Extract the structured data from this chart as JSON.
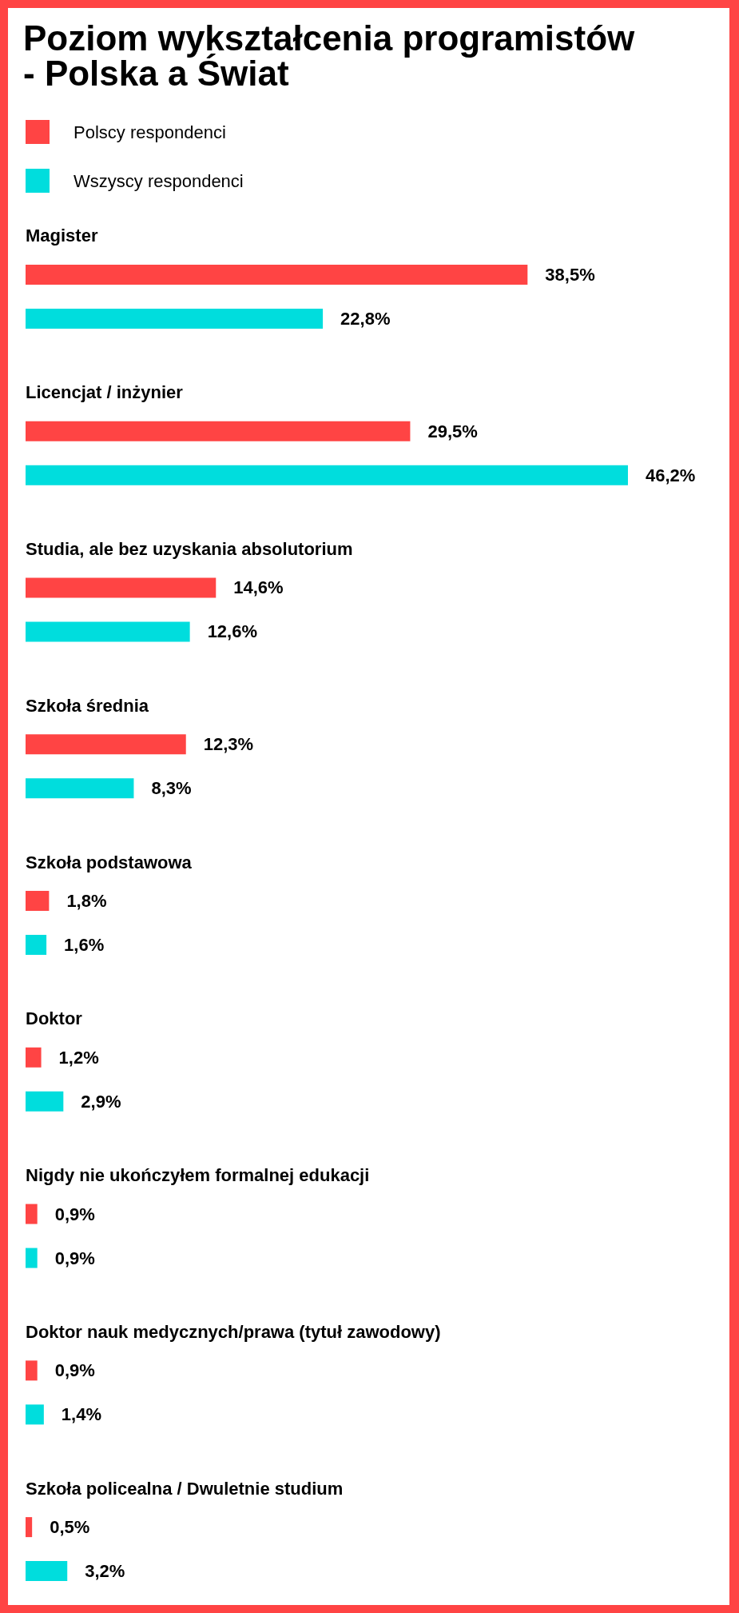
{
  "chart_data": {
    "type": "bar",
    "orientation": "horizontal",
    "title": "Poziom wykształcenia programistów - Polska a Świat",
    "categories": [
      "Magister",
      "Licencjat / inżynier",
      "Studia, ale bez uzyskania absolutorium",
      "Szkoła średnia",
      "Szkoła podstawowa",
      "Doktor",
      "Nigdy nie ukończyłem formalnej edukacji",
      "Doktor nauk medycznych/prawa (tytuł zawodowy)",
      "Szkoła policealna / Dwuletnie studium"
    ],
    "series": [
      {
        "name": "Polscy respondenci",
        "color": "#ff4444",
        "values": [
          38.5,
          29.5,
          14.6,
          12.3,
          1.8,
          1.2,
          0.9,
          0.9,
          0.5
        ],
        "value_labels": [
          "38,5%",
          "29,5%",
          "14,6%",
          "12,3%",
          "1,8%",
          "1,2%",
          "0,9%",
          "0,9%",
          "0,5%"
        ]
      },
      {
        "name": "Wszyscy respondenci",
        "color": "#00dddd",
        "values": [
          22.8,
          46.2,
          12.6,
          8.3,
          1.6,
          2.9,
          0.9,
          1.4,
          3.2
        ],
        "value_labels": [
          "22,8%",
          "46,2%",
          "12,6%",
          "8,3%",
          "1,6%",
          "2,9%",
          "0,9%",
          "1,4%",
          "3,2%"
        ]
      }
    ],
    "legend": "top left",
    "tick_labels": "y"
  }
}
